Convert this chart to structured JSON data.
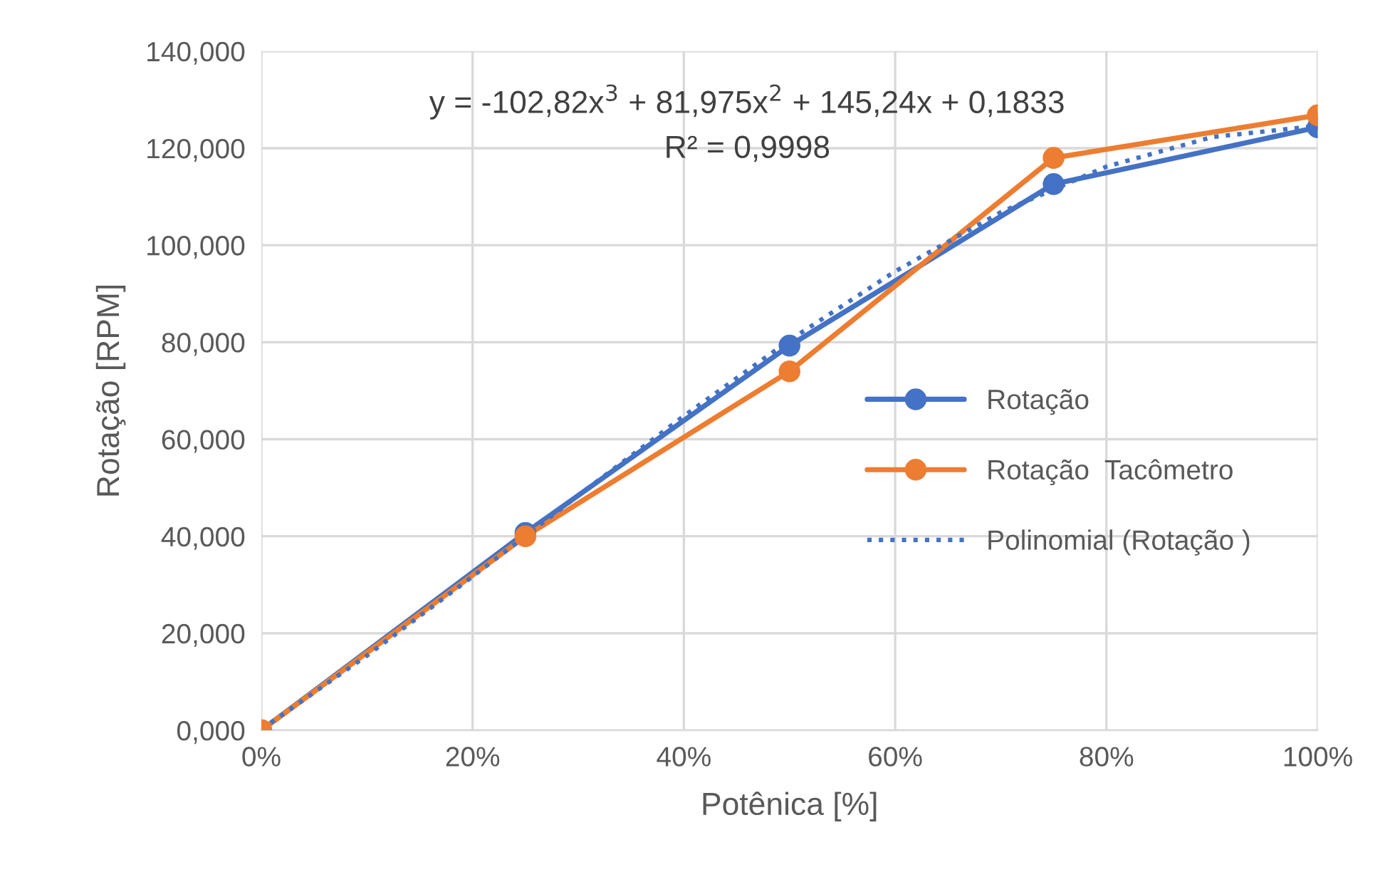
{
  "chart_data": {
    "type": "line",
    "xlabel": "Potênica [%]",
    "ylabel": "Rotação [RPM]",
    "x": [
      0,
      0.25,
      0.5,
      0.75,
      1
    ],
    "series": [
      {
        "name": "Rotação",
        "color": "#4472c4",
        "values": [
          0,
          40.7,
          79.3,
          112.6,
          124.3
        ],
        "marker": "circle",
        "line_style": "solid"
      },
      {
        "name": "Rotação  Tacômetro",
        "color": "#ed7d31",
        "values": [
          0,
          40,
          74,
          118,
          126.8
        ],
        "marker": "circle",
        "line_style": "solid"
      },
      {
        "name": "Polinomial (Rotação )",
        "color": "#4472c4",
        "x": [
          0,
          0.1,
          0.2,
          0.3,
          0.4,
          0.5,
          0.6,
          0.7,
          0.8,
          0.9,
          1
        ],
        "values": [
          0.2,
          15.4,
          31.7,
          48.4,
          64.8,
          80.4,
          94.6,
          106.8,
          116.2,
          122.3,
          124.6
        ],
        "marker": "none",
        "line_style": "dotted"
      }
    ],
    "xlim": [
      0,
      1
    ],
    "ylim": [
      0,
      140
    ],
    "xticks": [
      {
        "value": 0,
        "label": "0%"
      },
      {
        "value": 0.2,
        "label": "20%"
      },
      {
        "value": 0.4,
        "label": "40%"
      },
      {
        "value": 0.6,
        "label": "60%"
      },
      {
        "value": 0.8,
        "label": "80%"
      },
      {
        "value": 1,
        "label": "100%"
      }
    ],
    "yticks": [
      {
        "value": 0,
        "label": "0,000"
      },
      {
        "value": 20,
        "label": "20,000"
      },
      {
        "value": 40,
        "label": "40,000"
      },
      {
        "value": 60,
        "label": "60,000"
      },
      {
        "value": 80,
        "label": "80,000"
      },
      {
        "value": 100,
        "label": "100,000"
      },
      {
        "value": 120,
        "label": "120,000"
      },
      {
        "value": 140,
        "label": "140,000"
      }
    ],
    "annotations": [
      "y = -102,82x$^{3}$ + 81,975x$^{2}$ + 145,24x + 0,1833",
      "R² = 0,9998"
    ],
    "grid": true,
    "legend": "right"
  }
}
